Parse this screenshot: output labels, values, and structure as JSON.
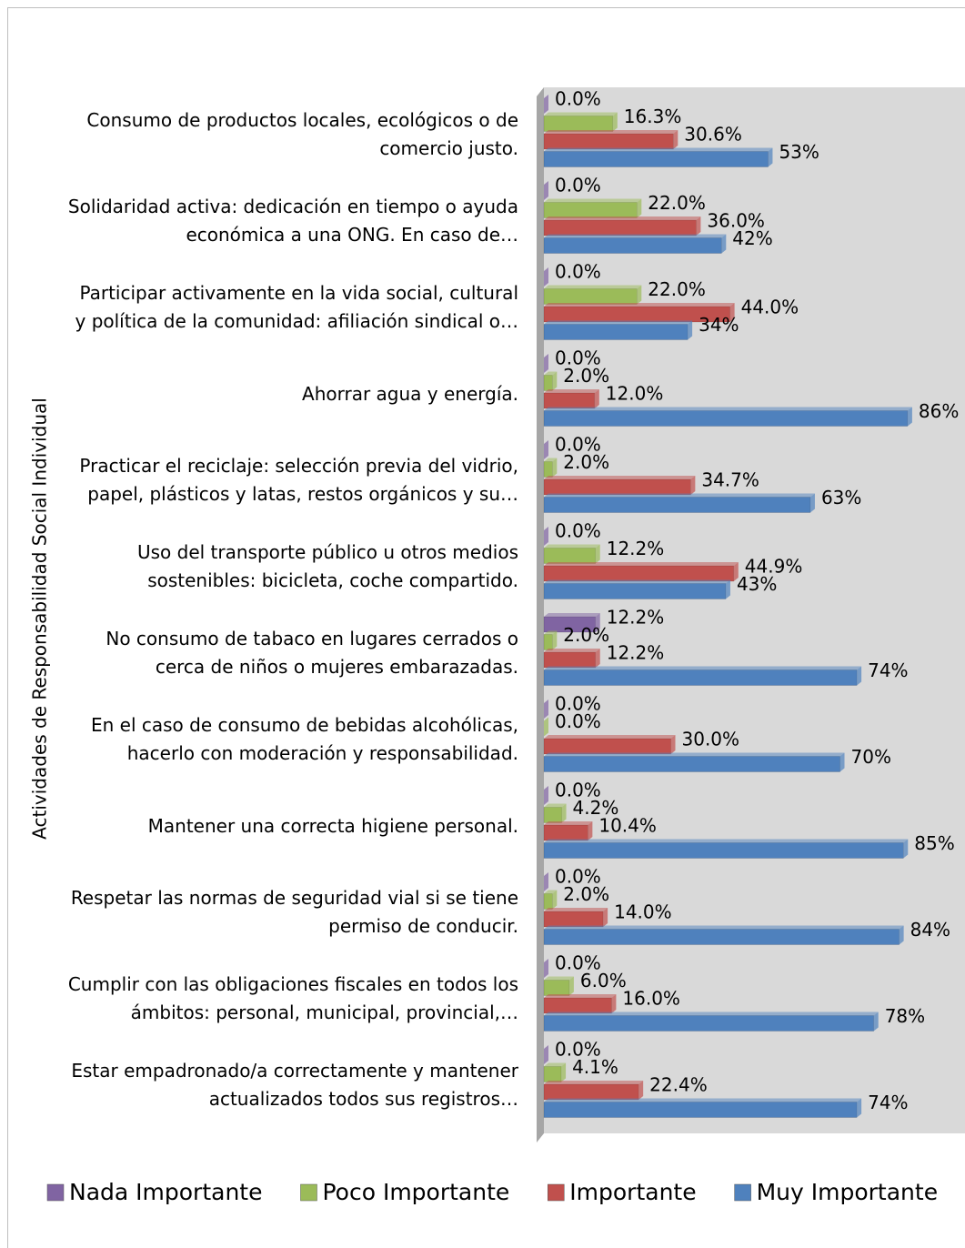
{
  "chart_data": {
    "type": "bar",
    "orientation": "horizontal",
    "y_axis_label": "Actividades de Responsabilidad Social Individual",
    "categories": [
      "Consumo de productos locales, ecológicos o de comercio justo.",
      "Solidaridad activa: dedicación en tiempo o ayuda económica a una ONG. En caso de…",
      "Participar activamente en la vida social, cultural y política de la comunidad: afiliación sindical o…",
      "Ahorrar agua y energía.",
      "Practicar el reciclaje: selección previa del vidrio, papel, plásticos y latas, restos orgánicos y su…",
      "Uso del transporte público u otros medios sostenibles: bicicleta, coche compartido.",
      "No consumo de tabaco en lugares cerrados o cerca de niños o mujeres embarazadas.",
      "En el caso de consumo de bebidas alcohólicas, hacerlo con moderación y responsabilidad.",
      "Mantener una correcta higiene personal.",
      "Respetar las normas de seguridad vial si se tiene permiso de conducir.",
      "Cumplir con las obligaciones fiscales en todos los ámbitos: personal, municipal, provincial,…",
      "Estar empadronado/a correctamente y mantener actualizados todos sus registros…"
    ],
    "series": [
      {
        "name": "Nada Importante",
        "color": "#8064a2",
        "values": [
          0,
          0,
          0,
          0,
          0,
          0,
          12.2,
          0,
          0,
          0,
          0,
          0
        ],
        "value_labels": [
          "0.0%",
          "0.0%",
          "0.0%",
          "0.0%",
          "0.0%",
          "0.0%",
          "12.2%",
          "0.0%",
          "0.0%",
          "0.0%",
          "0.0%",
          "0.0%"
        ]
      },
      {
        "name": "Poco Importante",
        "color": "#9bbb59",
        "values": [
          16.3,
          22,
          22,
          2,
          2,
          12.2,
          2,
          0,
          4.2,
          2,
          6,
          4.1
        ],
        "value_labels": [
          "16.3%",
          "22.0%",
          "22.0%",
          "2.0%",
          "2.0%",
          "12.2%",
          "2.0%",
          "0.0%",
          "4.2%",
          "2.0%",
          "6.0%",
          "4.1%"
        ]
      },
      {
        "name": "Importante",
        "color": "#c0504d",
        "values": [
          30.6,
          36,
          44,
          12,
          34.7,
          44.9,
          12.2,
          30,
          10.4,
          14,
          16,
          22.4
        ],
        "value_labels": [
          "30.6%",
          "36.0%",
          "44.0%",
          "12.0%",
          "34.7%",
          "44.9%",
          "12.2%",
          "30.0%",
          "10.4%",
          "14.0%",
          "16.0%",
          "22.4%"
        ]
      },
      {
        "name": "Muy Importante",
        "color": "#4f81bd",
        "values": [
          53,
          42,
          34,
          86,
          63,
          43,
          74,
          70,
          85,
          84,
          78,
          74
        ],
        "value_labels": [
          "53%",
          "42%",
          "34%",
          "86%",
          "63%",
          "43%",
          "74%",
          "70%",
          "85%",
          "84%",
          "78%",
          "74%"
        ]
      }
    ],
    "xlim": [
      0,
      100
    ],
    "legend": "bottom"
  }
}
